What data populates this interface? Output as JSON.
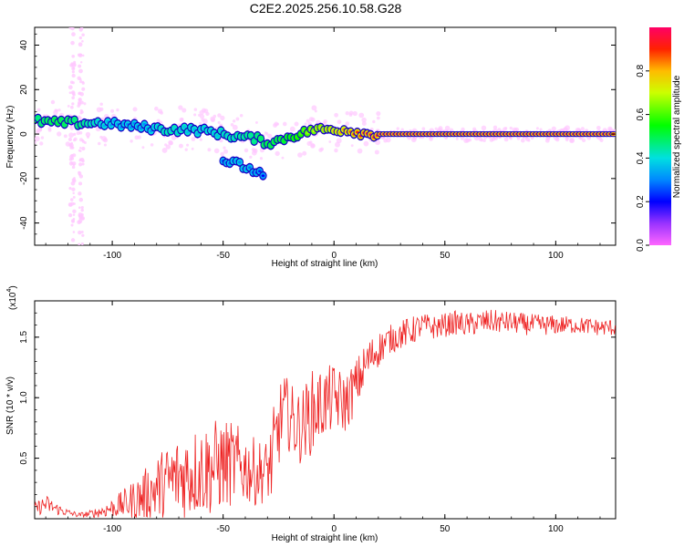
{
  "page_title": "C2E2.2025.256.10.58.G28",
  "colors": {
    "snr_line": "#ee2222",
    "spectrogram_points": "#ffc8ff",
    "spectral_ridge_low": "#1a00c8",
    "spectral_ridge_mid": "#00c8c8",
    "spectral_ridge_high": "#e8002a"
  },
  "chart_data": [
    {
      "type": "heatmap",
      "title": "C2E2.2025.256.10.58.G28",
      "xlabel": "Height of straight line (km)",
      "ylabel": "Frequency (Hz)",
      "xlim": [
        -135,
        127
      ],
      "ylim": [
        -50,
        48
      ],
      "xticks": [
        -100,
        -50,
        0,
        50,
        100
      ],
      "yticks": [
        40,
        20,
        0,
        -20,
        -40
      ],
      "colorbar": {
        "label": "Normalized spectral amplitude",
        "range": [
          0,
          1
        ],
        "ticks": [
          "0.0",
          "0.2",
          "0.4",
          "0.6",
          "0.8"
        ],
        "tick_values": [
          0.0,
          0.2,
          0.4,
          0.6,
          0.8
        ]
      },
      "ridge": {
        "x": [
          -135,
          -125,
          -115,
          -105,
          -95,
          -85,
          -75,
          -65,
          -55,
          -45,
          -35,
          -30,
          -25,
          -20,
          -15,
          -10,
          -5,
          0,
          5,
          10,
          15,
          20,
          40,
          60,
          80,
          100,
          127
        ],
        "frequency": [
          6,
          5,
          5,
          5,
          4,
          3,
          2,
          2,
          1,
          -1,
          -2,
          -4,
          -3,
          -1,
          0,
          2,
          2,
          2,
          2,
          1,
          0,
          0,
          0,
          0,
          0,
          0,
          0
        ],
        "amplitude": [
          0.45,
          0.5,
          0.45,
          0.35,
          0.3,
          0.3,
          0.4,
          0.35,
          0.35,
          0.4,
          0.45,
          0.5,
          0.5,
          0.55,
          0.6,
          0.7,
          0.75,
          0.8,
          0.85,
          0.9,
          0.95,
          0.95,
          0.95,
          0.95,
          0.95,
          0.95,
          0.95
        ]
      },
      "secondary_branch": {
        "x": [
          -50,
          -45,
          -40,
          -35,
          -32
        ],
        "frequency": [
          -12,
          -13,
          -15,
          -17,
          -19
        ],
        "amplitude": [
          0.25,
          0.3,
          0.3,
          0.25,
          0.2
        ]
      },
      "scatter_column_x": [
        -118,
        -114
      ]
    },
    {
      "type": "line",
      "xlabel": "Height of straight line (km)",
      "ylabel": "SNR (10 * v/v)",
      "y_multiplier_label": "(x10",
      "y_multiplier_exponent": "4",
      "y_multiplier_close": ")",
      "xlim": [
        -135,
        127
      ],
      "ylim": [
        0,
        1.8
      ],
      "xticks": [
        -100,
        -50,
        0,
        50,
        100
      ],
      "yticks": [
        0.5,
        1.0,
        1.5
      ],
      "ytick_labels": [
        "0.5",
        "1.0",
        "1.5"
      ],
      "series": [
        {
          "name": "SNR",
          "x": [
            -135,
            -130,
            -125,
            -120,
            -115,
            -110,
            -105,
            -100,
            -95,
            -90,
            -85,
            -80,
            -75,
            -70,
            -65,
            -60,
            -55,
            -50,
            -45,
            -40,
            -35,
            -30,
            -27,
            -25,
            -23,
            -20,
            -18,
            -15,
            -10,
            -5,
            0,
            5,
            10,
            15,
            20,
            25,
            30,
            35,
            40,
            45,
            50,
            55,
            60,
            65,
            70,
            80,
            90,
            100,
            110,
            120,
            127
          ],
          "values": [
            0.08,
            0.12,
            0.08,
            0.05,
            0.03,
            0.04,
            0.06,
            0.09,
            0.12,
            0.15,
            0.2,
            0.25,
            0.3,
            0.35,
            0.38,
            0.4,
            0.42,
            0.45,
            0.45,
            0.42,
            0.38,
            0.4,
            0.5,
            0.75,
            0.9,
            0.85,
            0.78,
            0.75,
            0.88,
            0.95,
            1.0,
            0.95,
            1.1,
            1.3,
            1.4,
            1.48,
            1.52,
            1.55,
            1.6,
            1.58,
            1.6,
            1.62,
            1.6,
            1.62,
            1.63,
            1.62,
            1.6,
            1.6,
            1.6,
            1.58,
            1.58
          ],
          "noise": [
            0.05,
            0.08,
            0.05,
            0.03,
            0.02,
            0.03,
            0.05,
            0.08,
            0.12,
            0.18,
            0.22,
            0.28,
            0.32,
            0.35,
            0.38,
            0.38,
            0.4,
            0.38,
            0.35,
            0.3,
            0.28,
            0.25,
            0.45,
            0.35,
            0.3,
            0.3,
            0.3,
            0.3,
            0.35,
            0.3,
            0.28,
            0.25,
            0.22,
            0.18,
            0.15,
            0.12,
            0.12,
            0.12,
            0.1,
            0.1,
            0.1,
            0.1,
            0.1,
            0.1,
            0.1,
            0.09,
            0.09,
            0.08,
            0.07,
            0.07,
            0.07
          ]
        }
      ]
    }
  ]
}
